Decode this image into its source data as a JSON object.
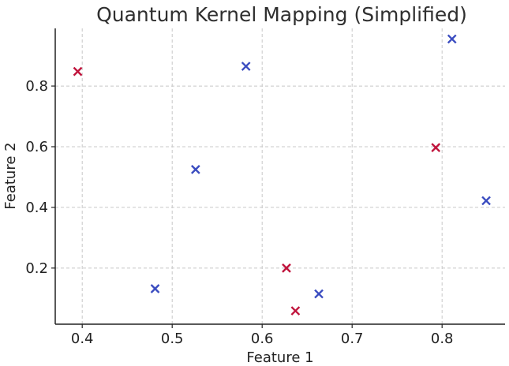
{
  "chart_data": {
    "type": "scatter",
    "title": "Quantum Kernel Mapping (Simplified)",
    "xlabel": "Feature 1",
    "ylabel": "Feature 2",
    "xlim": [
      0.37,
      0.87
    ],
    "ylim": [
      0.015,
      0.99
    ],
    "xticks": [
      0.4,
      0.5,
      0.6,
      0.7,
      0.8
    ],
    "xtick_labels": [
      "0.4",
      "0.5",
      "0.6",
      "0.7",
      "0.8"
    ],
    "yticks": [
      0.2,
      0.4,
      0.6,
      0.8
    ],
    "ytick_labels": [
      "0.2",
      "0.4",
      "0.6",
      "0.8"
    ],
    "grid": true,
    "marker": "x",
    "series": [
      {
        "color": "#c0143c",
        "points": [
          {
            "x": 0.395,
            "y": 0.848
          },
          {
            "x": 0.793,
            "y": 0.597
          },
          {
            "x": 0.627,
            "y": 0.2
          },
          {
            "x": 0.637,
            "y": 0.059
          }
        ]
      },
      {
        "color": "#3a4cc0",
        "points": [
          {
            "x": 0.811,
            "y": 0.955
          },
          {
            "x": 0.582,
            "y": 0.865
          },
          {
            "x": 0.526,
            "y": 0.525
          },
          {
            "x": 0.849,
            "y": 0.422
          },
          {
            "x": 0.481,
            "y": 0.132
          },
          {
            "x": 0.663,
            "y": 0.115
          }
        ]
      }
    ]
  }
}
